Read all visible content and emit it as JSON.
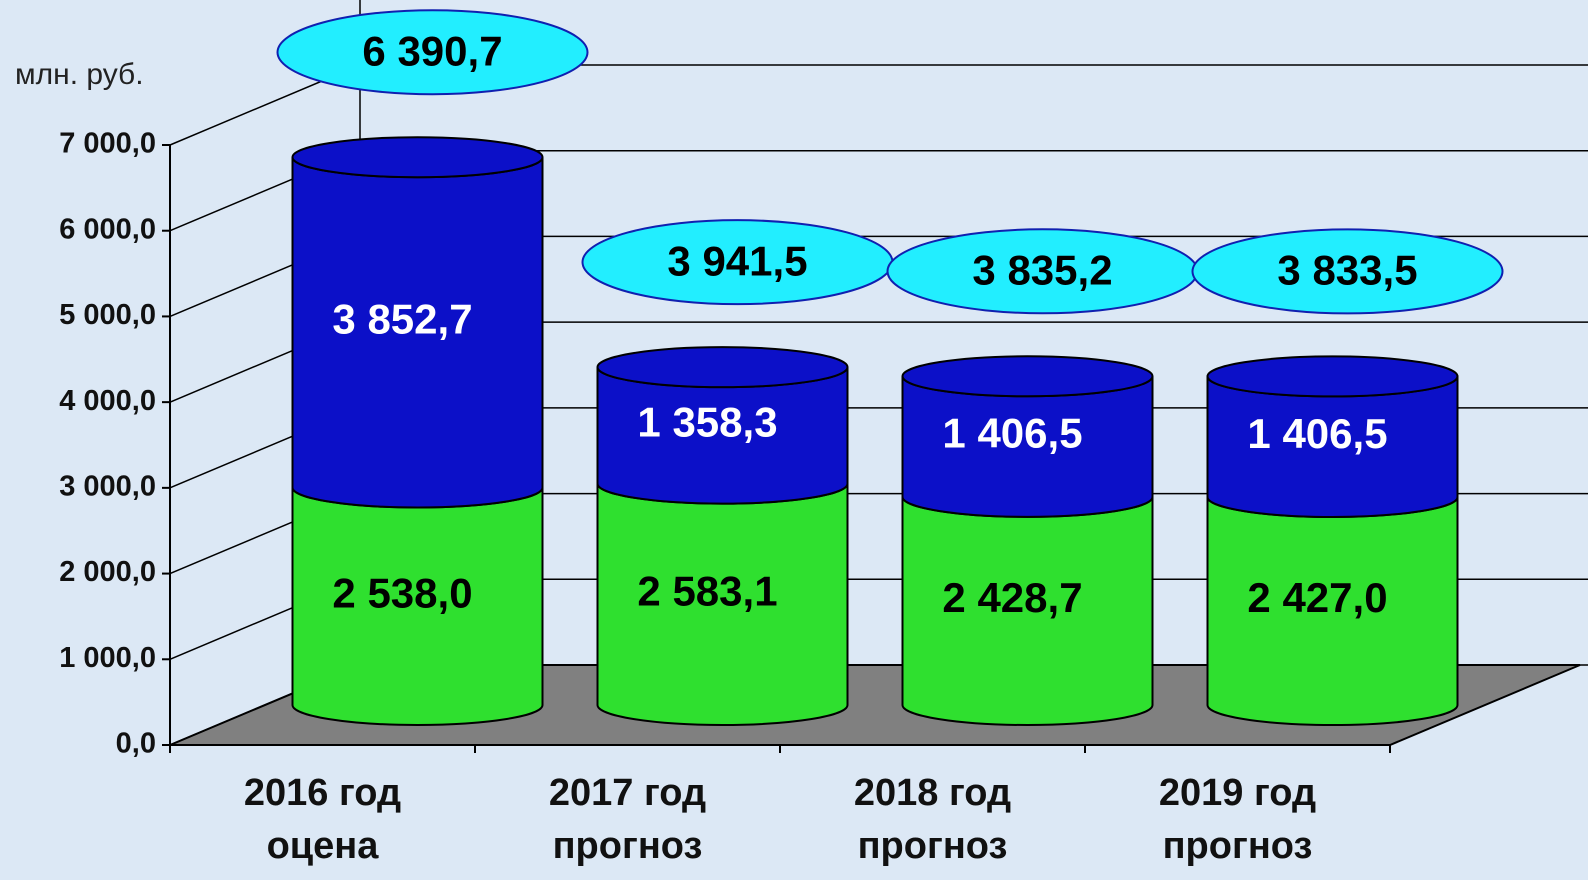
{
  "chart_data": {
    "type": "bar3d_stacked",
    "y_label": "млн. руб.",
    "categories": [
      [
        "2016 год",
        "оцена"
      ],
      [
        "2017 год",
        "прогноз"
      ],
      [
        "2018 год",
        "прогноз"
      ],
      [
        "2019 год",
        "прогноз"
      ]
    ],
    "series": [
      {
        "color": "#2fe02f",
        "values": [
          2538.0,
          2583.1,
          2428.7,
          2427.0
        ],
        "value_labels": [
          "2 538,0",
          "2 583,1",
          "2 428,7",
          "2 427,0"
        ]
      },
      {
        "color": "#0c10c8",
        "values": [
          3852.7,
          1358.3,
          1406.5,
          1406.5
        ],
        "value_labels": [
          "3 852,7",
          "1 358,3",
          "1 406,5",
          "1 406,5"
        ]
      }
    ],
    "totals": [
      6390.7,
      3941.5,
      3835.2,
      3833.5
    ],
    "total_labels": [
      "6 390,7",
      "3 941,5",
      "3 835,2",
      "3 833,5"
    ],
    "ylim": [
      0,
      8000
    ],
    "yticks": [
      {
        "value": 0,
        "label": "0,0"
      },
      {
        "value": 1000,
        "label": "1 000,0"
      },
      {
        "value": 2000,
        "label": "2 000,0"
      },
      {
        "value": 3000,
        "label": "3 000,0"
      },
      {
        "value": 4000,
        "label": "4 000,0"
      },
      {
        "value": 5000,
        "label": "5 000,0"
      },
      {
        "value": 6000,
        "label": "6 000,0"
      },
      {
        "value": 7000,
        "label": "7 000,0"
      }
    ],
    "grid": true
  }
}
